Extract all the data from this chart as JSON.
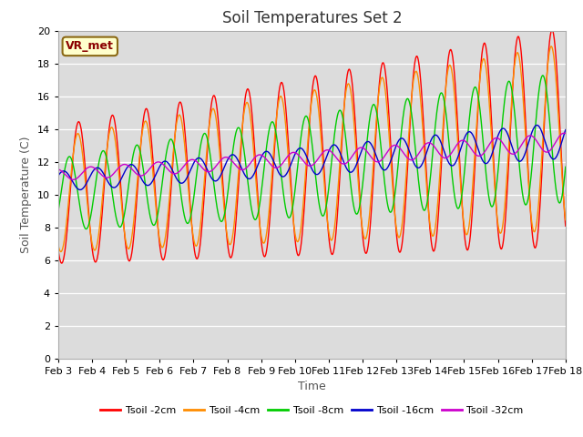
{
  "title": "Soil Temperatures Set 2",
  "xlabel": "Time",
  "ylabel": "Soil Temperature (C)",
  "ylim": [
    0,
    20
  ],
  "yticks": [
    0,
    2,
    4,
    6,
    8,
    10,
    12,
    14,
    16,
    18,
    20
  ],
  "xtick_labels": [
    "Feb 3",
    "Feb 4",
    "Feb 5",
    "Feb 6",
    "Feb 7",
    "Feb 8",
    "Feb 9",
    "Feb 10",
    "Feb 11",
    "Feb 12",
    "Feb 13",
    "Feb 14",
    "Feb 15",
    "Feb 16",
    "Feb 17",
    "Feb 18"
  ],
  "annotation_text": "VR_met",
  "annotation_color": "#8B0000",
  "annotation_bg": "#FFFFCC",
  "annotation_border": "#8B6914",
  "series": [
    {
      "label": "Tsoil -2cm",
      "color": "#FF0000"
    },
    {
      "label": "Tsoil -4cm",
      "color": "#FF8C00"
    },
    {
      "label": "Tsoil -8cm",
      "color": "#00CC00"
    },
    {
      "label": "Tsoil -16cm",
      "color": "#0000CC"
    },
    {
      "label": "Tsoil -32cm",
      "color": "#CC00CC"
    }
  ],
  "background_color": "#DCDCDC",
  "fig_background": "#FFFFFF",
  "title_fontsize": 12,
  "axis_label_fontsize": 9,
  "tick_label_fontsize": 8,
  "legend_fontsize": 8
}
